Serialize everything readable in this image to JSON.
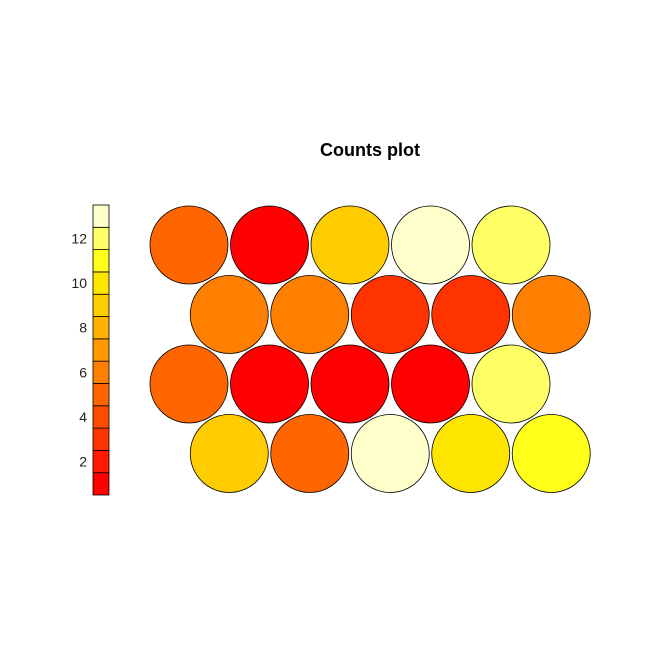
{
  "chart_data": {
    "type": "heatmap",
    "title": "Counts plot",
    "layout": "hexagonal",
    "grid": {
      "rows": 4,
      "cols": 5
    },
    "color_scale": {
      "levels": [
        1,
        2,
        3,
        4,
        5,
        6,
        7,
        8,
        9,
        10,
        11,
        12,
        13
      ],
      "colors": [
        "#ff0000",
        "#ff1a00",
        "#ff3300",
        "#ff4d00",
        "#ff6600",
        "#ff8000",
        "#ff9900",
        "#ffb300",
        "#ffcc00",
        "#ffe600",
        "#ffff1a",
        "#ffff66",
        "#ffffcc"
      ],
      "tick_labels": [
        "2",
        "4",
        "6",
        "8",
        "10",
        "12"
      ],
      "tick_values": [
        2,
        4,
        6,
        8,
        10,
        12
      ]
    },
    "rows": [
      {
        "row": 1,
        "offset": false,
        "values": [
          5,
          1,
          9,
          13,
          12
        ]
      },
      {
        "row": 2,
        "offset": true,
        "values": [
          6,
          6,
          3,
          3,
          6
        ]
      },
      {
        "row": 3,
        "offset": false,
        "values": [
          5,
          1,
          1,
          1,
          12
        ]
      },
      {
        "row": 4,
        "offset": true,
        "values": [
          9,
          5,
          13,
          10,
          11
        ]
      }
    ]
  }
}
